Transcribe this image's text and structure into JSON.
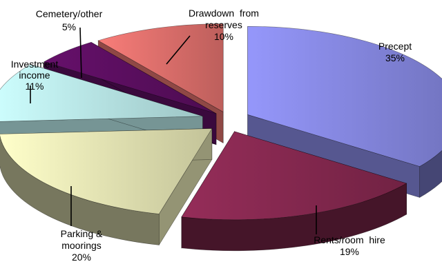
{
  "chart_data": {
    "type": "pie",
    "style": "3d-exploded",
    "slices": [
      {
        "label_lines": [
          "Precept",
          "35%"
        ],
        "label": "Precept",
        "value": 35,
        "color": "#8a8ce8"
      },
      {
        "label_lines": [
          "Rents/room  hire",
          "19%"
        ],
        "label": "Rents/room hire",
        "value": 19,
        "color": "#8a2a52"
      },
      {
        "label_lines": [
          "Parking &",
          "moorings",
          "20%"
        ],
        "label": "Parking & moorings",
        "value": 20,
        "color": "#eeeebb"
      },
      {
        "label_lines": [
          "Investment",
          "income",
          "11%"
        ],
        "label": "Investment income",
        "value": 11,
        "color": "#bff0f0"
      },
      {
        "label_lines": [
          "Cemetery/other",
          "5%"
        ],
        "label": "Cemetery/other",
        "value": 5,
        "color": "#5e0f63"
      },
      {
        "label_lines": [
          "Drawdown  from",
          "reserves",
          "10%"
        ],
        "label": "Drawdown from reserves",
        "value": 10,
        "color": "#e77470"
      }
    ]
  }
}
